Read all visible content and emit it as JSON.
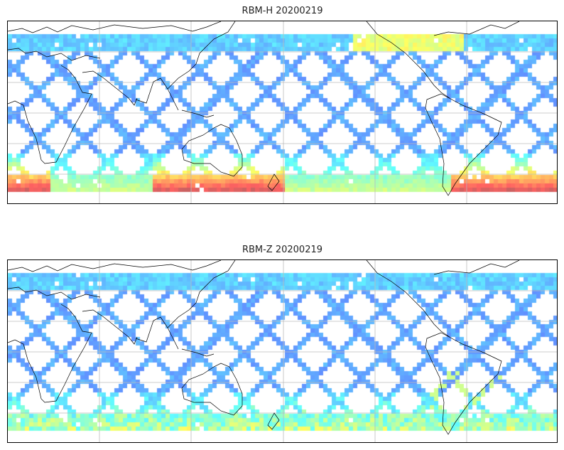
{
  "panels": [
    {
      "title": "RBM-H 20200219",
      "colormap": "jet",
      "hot_south": true
    },
    {
      "title": "RBM-Z 20200219",
      "colormap": "jet",
      "hot_south": false
    }
  ]
}
